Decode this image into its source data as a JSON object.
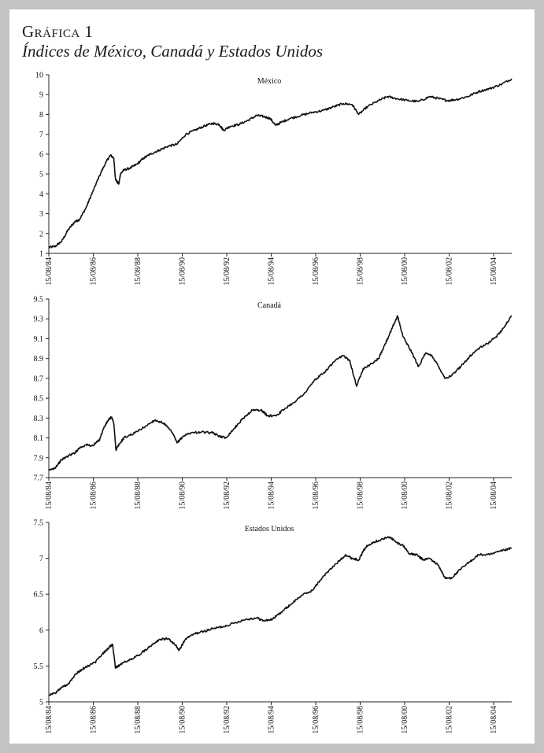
{
  "figure": {
    "number": "Gráfica 1",
    "title": "Índices de México, Canadá y Estados Unidos"
  },
  "chart_data": [
    {
      "type": "line",
      "title": "México",
      "x_ticks": [
        "15/08/84",
        "15/08/86",
        "15/08/88",
        "15/08/90",
        "15/08/92",
        "15/08/94",
        "15/08/96",
        "15/08/98",
        "15/08/00",
        "15/08/02",
        "15/08/04"
      ],
      "y_ticks": [
        "1",
        "2",
        "3",
        "4",
        "5",
        "6",
        "7",
        "8",
        "9",
        "10"
      ],
      "ylim": [
        1,
        10
      ],
      "xlim": [
        1984.62,
        2005.5
      ],
      "grid": false,
      "color": "#111111",
      "series": [
        {
          "points": [
            [
              1984.62,
              1.3
            ],
            [
              1984.9,
              1.35
            ],
            [
              1985.2,
              1.6
            ],
            [
              1985.5,
              2.2
            ],
            [
              1985.8,
              2.6
            ],
            [
              1986.0,
              2.7
            ],
            [
              1986.3,
              3.3
            ],
            [
              1986.6,
              4.1
            ],
            [
              1986.9,
              4.9
            ],
            [
              1987.2,
              5.6
            ],
            [
              1987.4,
              5.95
            ],
            [
              1987.55,
              5.8
            ],
            [
              1987.62,
              4.8
            ],
            [
              1987.7,
              4.6
            ],
            [
              1987.78,
              4.5
            ],
            [
              1987.85,
              5.0
            ],
            [
              1988.0,
              5.2
            ],
            [
              1988.3,
              5.3
            ],
            [
              1988.6,
              5.5
            ],
            [
              1988.9,
              5.8
            ],
            [
              1989.2,
              6.0
            ],
            [
              1989.6,
              6.2
            ],
            [
              1990.0,
              6.4
            ],
            [
              1990.4,
              6.5
            ],
            [
              1990.8,
              7.0
            ],
            [
              1991.2,
              7.2
            ],
            [
              1991.6,
              7.4
            ],
            [
              1992.0,
              7.55
            ],
            [
              1992.3,
              7.5
            ],
            [
              1992.5,
              7.2
            ],
            [
              1992.8,
              7.4
            ],
            [
              1993.2,
              7.5
            ],
            [
              1993.6,
              7.7
            ],
            [
              1994.0,
              7.95
            ],
            [
              1994.3,
              7.9
            ],
            [
              1994.6,
              7.8
            ],
            [
              1994.85,
              7.45
            ],
            [
              1995.1,
              7.6
            ],
            [
              1995.5,
              7.8
            ],
            [
              1996.0,
              7.95
            ],
            [
              1996.5,
              8.1
            ],
            [
              1997.0,
              8.2
            ],
            [
              1997.5,
              8.4
            ],
            [
              1997.9,
              8.55
            ],
            [
              1998.3,
              8.5
            ],
            [
              1998.6,
              8.0
            ],
            [
              1999.0,
              8.4
            ],
            [
              1999.5,
              8.7
            ],
            [
              1999.9,
              8.9
            ],
            [
              2000.3,
              8.8
            ],
            [
              2000.8,
              8.7
            ],
            [
              2001.3,
              8.65
            ],
            [
              2001.8,
              8.9
            ],
            [
              2002.2,
              8.8
            ],
            [
              2002.6,
              8.7
            ],
            [
              2003.0,
              8.75
            ],
            [
              2003.5,
              8.9
            ],
            [
              2004.0,
              9.15
            ],
            [
              2004.5,
              9.3
            ],
            [
              2005.0,
              9.5
            ],
            [
              2005.5,
              9.8
            ]
          ]
        }
      ]
    },
    {
      "type": "line",
      "title": "Canadá",
      "x_ticks": [
        "15/08/84",
        "15/08/86",
        "15/08/88",
        "15/08/90",
        "15/08/92",
        "15/08/94",
        "15/08/96",
        "15/08/98",
        "15/08/00",
        "15/08/02",
        "15/08/04"
      ],
      "y_ticks": [
        "7.7",
        "7.9",
        "8.1",
        "8.3",
        "8.5",
        "8.7",
        "8.9",
        "9.1",
        "9.3",
        "9.5"
      ],
      "ylim": [
        7.7,
        9.5
      ],
      "xlim": [
        1984.62,
        2005.5
      ],
      "grid": false,
      "color": "#111111",
      "series": [
        {
          "points": [
            [
              1984.62,
              7.77
            ],
            [
              1984.9,
              7.8
            ],
            [
              1985.2,
              7.88
            ],
            [
              1985.5,
              7.92
            ],
            [
              1985.8,
              7.95
            ],
            [
              1986.0,
              8.0
            ],
            [
              1986.3,
              8.03
            ],
            [
              1986.6,
              8.02
            ],
            [
              1986.9,
              8.08
            ],
            [
              1987.1,
              8.2
            ],
            [
              1987.3,
              8.28
            ],
            [
              1987.45,
              8.31
            ],
            [
              1987.55,
              8.25
            ],
            [
              1987.65,
              7.98
            ],
            [
              1987.75,
              8.02
            ],
            [
              1988.0,
              8.1
            ],
            [
              1988.5,
              8.15
            ],
            [
              1989.0,
              8.22
            ],
            [
              1989.4,
              8.28
            ],
            [
              1989.8,
              8.25
            ],
            [
              1990.2,
              8.15
            ],
            [
              1990.4,
              8.05
            ],
            [
              1990.7,
              8.12
            ],
            [
              1991.0,
              8.15
            ],
            [
              1991.5,
              8.16
            ],
            [
              1992.0,
              8.15
            ],
            [
              1992.3,
              8.12
            ],
            [
              1992.6,
              8.1
            ],
            [
              1993.0,
              8.2
            ],
            [
              1993.4,
              8.3
            ],
            [
              1993.8,
              8.38
            ],
            [
              1994.2,
              8.38
            ],
            [
              1994.5,
              8.32
            ],
            [
              1994.9,
              8.33
            ],
            [
              1995.3,
              8.4
            ],
            [
              1995.8,
              8.48
            ],
            [
              1996.2,
              8.56
            ],
            [
              1996.6,
              8.68
            ],
            [
              1997.0,
              8.75
            ],
            [
              1997.5,
              8.87
            ],
            [
              1997.9,
              8.93
            ],
            [
              1998.2,
              8.88
            ],
            [
              1998.5,
              8.62
            ],
            [
              1998.8,
              8.8
            ],
            [
              1999.2,
              8.85
            ],
            [
              1999.5,
              8.9
            ],
            [
              1999.8,
              9.05
            ],
            [
              2000.1,
              9.2
            ],
            [
              2000.35,
              9.33
            ],
            [
              2000.6,
              9.12
            ],
            [
              2000.9,
              9.0
            ],
            [
              2001.3,
              8.82
            ],
            [
              2001.6,
              8.95
            ],
            [
              2001.9,
              8.93
            ],
            [
              2002.2,
              8.82
            ],
            [
              2002.5,
              8.7
            ],
            [
              2002.8,
              8.73
            ],
            [
              2003.2,
              8.82
            ],
            [
              2003.6,
              8.92
            ],
            [
              2004.0,
              9.0
            ],
            [
              2004.4,
              9.05
            ],
            [
              2004.8,
              9.12
            ],
            [
              2005.1,
              9.2
            ],
            [
              2005.5,
              9.33
            ]
          ]
        }
      ]
    },
    {
      "type": "line",
      "title": "Estados Unidos",
      "x_ticks": [
        "15/08/84",
        "15/08/86",
        "15/08/88",
        "15/08/90",
        "15/08/92",
        "15/08/94",
        "15/08/96",
        "15/08/98",
        "15/08/00",
        "15/08/02",
        "15/08/04"
      ],
      "y_ticks": [
        "5",
        "5.5",
        "6",
        "6.5",
        "7",
        "7.5"
      ],
      "ylim": [
        5,
        7.5
      ],
      "xlim": [
        1984.62,
        2005.5
      ],
      "grid": false,
      "color": "#111111",
      "series": [
        {
          "points": [
            [
              1984.62,
              5.1
            ],
            [
              1984.9,
              5.12
            ],
            [
              1985.2,
              5.2
            ],
            [
              1985.5,
              5.25
            ],
            [
              1985.8,
              5.38
            ],
            [
              1986.1,
              5.45
            ],
            [
              1986.4,
              5.5
            ],
            [
              1986.7,
              5.55
            ],
            [
              1987.0,
              5.65
            ],
            [
              1987.3,
              5.75
            ],
            [
              1987.5,
              5.8
            ],
            [
              1987.62,
              5.48
            ],
            [
              1987.75,
              5.5
            ],
            [
              1988.0,
              5.55
            ],
            [
              1988.4,
              5.6
            ],
            [
              1988.8,
              5.68
            ],
            [
              1989.2,
              5.78
            ],
            [
              1989.6,
              5.87
            ],
            [
              1990.0,
              5.88
            ],
            [
              1990.3,
              5.8
            ],
            [
              1990.5,
              5.72
            ],
            [
              1990.8,
              5.88
            ],
            [
              1991.2,
              5.95
            ],
            [
              1991.6,
              5.98
            ],
            [
              1992.0,
              6.02
            ],
            [
              1992.5,
              6.05
            ],
            [
              1993.0,
              6.1
            ],
            [
              1993.5,
              6.15
            ],
            [
              1994.0,
              6.17
            ],
            [
              1994.3,
              6.13
            ],
            [
              1994.7,
              6.15
            ],
            [
              1995.1,
              6.25
            ],
            [
              1995.5,
              6.35
            ],
            [
              1996.0,
              6.48
            ],
            [
              1996.5,
              6.55
            ],
            [
              1997.0,
              6.75
            ],
            [
              1997.5,
              6.9
            ],
            [
              1998.0,
              7.05
            ],
            [
              1998.3,
              7.0
            ],
            [
              1998.6,
              6.98
            ],
            [
              1998.9,
              7.15
            ],
            [
              1999.2,
              7.22
            ],
            [
              1999.6,
              7.26
            ],
            [
              2000.0,
              7.3
            ],
            [
              2000.3,
              7.22
            ],
            [
              2000.6,
              7.18
            ],
            [
              2000.9,
              7.06
            ],
            [
              2001.2,
              7.05
            ],
            [
              2001.5,
              6.98
            ],
            [
              2001.8,
              7.0
            ],
            [
              2002.2,
              6.9
            ],
            [
              2002.5,
              6.72
            ],
            [
              2002.8,
              6.73
            ],
            [
              2003.2,
              6.85
            ],
            [
              2003.6,
              6.95
            ],
            [
              2004.0,
              7.05
            ],
            [
              2004.5,
              7.05
            ],
            [
              2005.0,
              7.1
            ],
            [
              2005.5,
              7.14
            ]
          ]
        }
      ]
    }
  ]
}
